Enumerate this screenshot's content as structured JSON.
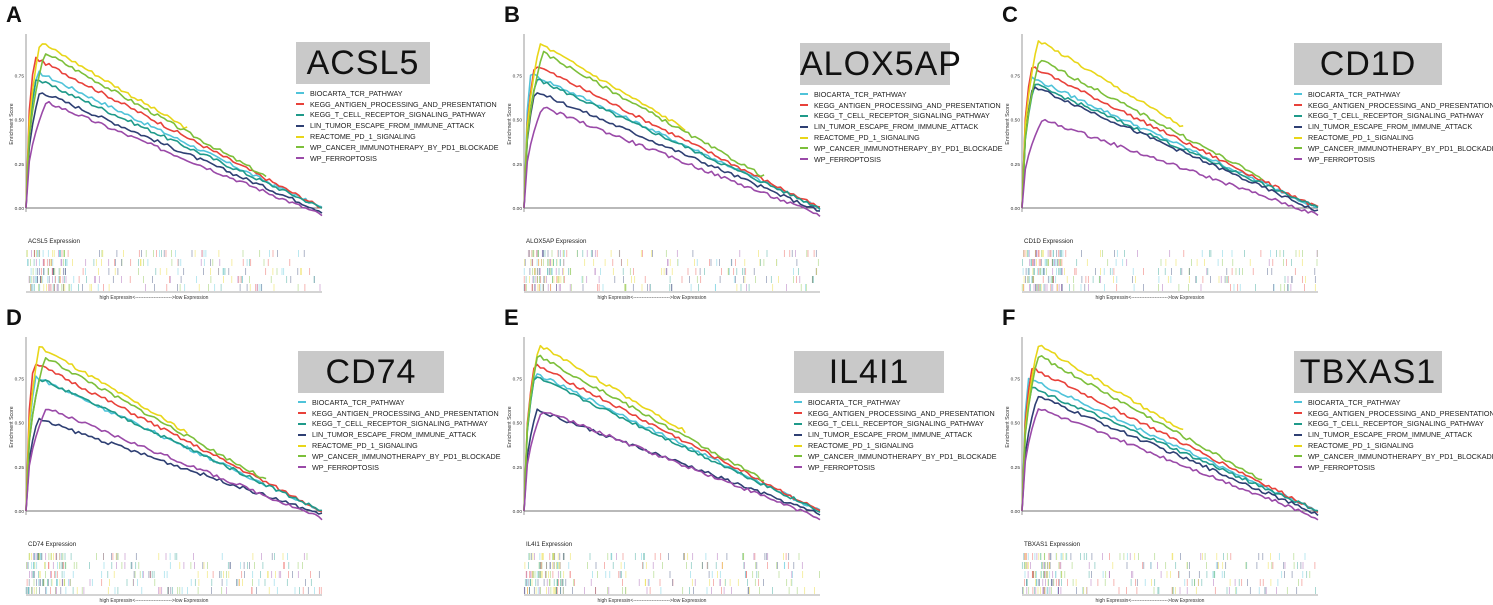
{
  "pathways": [
    {
      "name": "BIOCARTA_TCR_PATHWAY",
      "color": "#4fc3d9"
    },
    {
      "name": "KEGG_ANTIGEN_PROCESSING_AND_PRESENTATION",
      "color": "#e8413a"
    },
    {
      "name": "KEGG_T_CELL_RECEPTOR_SIGNALING_PATHWAY",
      "color": "#1f9a8a"
    },
    {
      "name": "LIN_TUMOR_ESCAPE_FROM_IMMUNE_ATTACK",
      "color": "#2e3f73"
    },
    {
      "name": "REACTOME_PD_1_SIGNALING",
      "color": "#e8d619"
    },
    {
      "name": "WP_CANCER_IMMUNOTHERAPY_BY_PD1_BLOCKADE",
      "color": "#7cbf3a"
    },
    {
      "name": "WP_FERROPTOSIS",
      "color": "#9a4aa8"
    }
  ],
  "common": {
    "ylabel": "Enrichment Score",
    "xlabel": "high Expressin<---------------------->low Expression",
    "yticks": [
      "0.00",
      "0.25",
      "0.50",
      "0.75"
    ]
  },
  "chart_data": [
    {
      "type": "line",
      "letter": "A",
      "gene": "ACSL5",
      "expr_label": "ACSL5 Expression",
      "ylabel": "Enrichment Score",
      "ylim": [
        0,
        0.95
      ],
      "series": [
        {
          "name": "BIOCARTA_TCR_PATHWAY",
          "peak": 0.77
        },
        {
          "name": "KEGG_ANTIGEN_PROCESSING_AND_PRESENTATION",
          "peak": 0.85
        },
        {
          "name": "KEGG_T_CELL_RECEPTOR_SIGNALING_PATHWAY",
          "peak": 0.73
        },
        {
          "name": "LIN_TUMOR_ESCAPE_FROM_IMMUNE_ATTACK",
          "peak": 0.66
        },
        {
          "name": "REACTOME_PD_1_SIGNALING",
          "peak": 0.94
        },
        {
          "name": "WP_CANCER_IMMUNOTHERAPY_BY_PD1_BLOCKADE",
          "peak": 0.88
        },
        {
          "name": "WP_FERROPTOSIS",
          "peak": 0.6
        }
      ]
    },
    {
      "type": "line",
      "letter": "B",
      "gene": "ALOX5AP",
      "expr_label": "ALOX5AP Expression",
      "ylabel": "Enrichment Score",
      "ylim": [
        0,
        0.95
      ],
      "series": [
        {
          "name": "BIOCARTA_TCR_PATHWAY",
          "peak": 0.76
        },
        {
          "name": "KEGG_ANTIGEN_PROCESSING_AND_PRESENTATION",
          "peak": 0.81
        },
        {
          "name": "KEGG_T_CELL_RECEPTOR_SIGNALING_PATHWAY",
          "peak": 0.73
        },
        {
          "name": "LIN_TUMOR_ESCAPE_FROM_IMMUNE_ATTACK",
          "peak": 0.66
        },
        {
          "name": "REACTOME_PD_1_SIGNALING",
          "peak": 0.93
        },
        {
          "name": "WP_CANCER_IMMUNOTHERAPY_BY_PD1_BLOCKADE",
          "peak": 0.88
        },
        {
          "name": "WP_FERROPTOSIS",
          "peak": 0.57
        }
      ]
    },
    {
      "type": "line",
      "letter": "C",
      "gene": "CD1D",
      "expr_label": "CD1D Expression",
      "ylabel": "Enrichment Score",
      "ylim": [
        0,
        0.95
      ],
      "series": [
        {
          "name": "BIOCARTA_TCR_PATHWAY",
          "peak": 0.74
        },
        {
          "name": "KEGG_ANTIGEN_PROCESSING_AND_PRESENTATION",
          "peak": 0.8
        },
        {
          "name": "KEGG_T_CELL_RECEPTOR_SIGNALING_PATHWAY",
          "peak": 0.7
        },
        {
          "name": "LIN_TUMOR_ESCAPE_FROM_IMMUNE_ATTACK",
          "peak": 0.69
        },
        {
          "name": "REACTOME_PD_1_SIGNALING",
          "peak": 0.95
        },
        {
          "name": "WP_CANCER_IMMUNOTHERAPY_BY_PD1_BLOCKADE",
          "peak": 0.84
        },
        {
          "name": "WP_FERROPTOSIS",
          "peak": 0.5
        }
      ]
    },
    {
      "type": "line",
      "letter": "D",
      "gene": "CD74",
      "expr_label": "CD74 Expression",
      "ylabel": "Enrichment Score",
      "ylim": [
        0,
        0.95
      ],
      "series": [
        {
          "name": "BIOCARTA_TCR_PATHWAY",
          "peak": 0.76
        },
        {
          "name": "KEGG_ANTIGEN_PROCESSING_AND_PRESENTATION",
          "peak": 0.84
        },
        {
          "name": "KEGG_T_CELL_RECEPTOR_SIGNALING_PATHWAY",
          "peak": 0.75
        },
        {
          "name": "LIN_TUMOR_ESCAPE_FROM_IMMUNE_ATTACK",
          "peak": 0.52
        },
        {
          "name": "REACTOME_PD_1_SIGNALING",
          "peak": 0.93
        },
        {
          "name": "WP_CANCER_IMMUNOTHERAPY_BY_PD1_BLOCKADE",
          "peak": 0.87
        },
        {
          "name": "WP_FERROPTOSIS",
          "peak": 0.58
        }
      ]
    },
    {
      "type": "line",
      "letter": "E",
      "gene": "IL4I1",
      "expr_label": "IL4I1 Expression",
      "ylabel": "Enrichment Score",
      "ylim": [
        0,
        0.95
      ],
      "series": [
        {
          "name": "BIOCARTA_TCR_PATHWAY",
          "peak": 0.78
        },
        {
          "name": "KEGG_ANTIGEN_PROCESSING_AND_PRESENTATION",
          "peak": 0.83
        },
        {
          "name": "KEGG_T_CELL_RECEPTOR_SIGNALING_PATHWAY",
          "peak": 0.76
        },
        {
          "name": "LIN_TUMOR_ESCAPE_FROM_IMMUNE_ATTACK",
          "peak": 0.57
        },
        {
          "name": "REACTOME_PD_1_SIGNALING",
          "peak": 0.94
        },
        {
          "name": "WP_CANCER_IMMUNOTHERAPY_BY_PD1_BLOCKADE",
          "peak": 0.88
        },
        {
          "name": "WP_FERROPTOSIS",
          "peak": 0.57
        }
      ]
    },
    {
      "type": "line",
      "letter": "F",
      "gene": "TBXAS1",
      "expr_label": "TBXAS1 Expression",
      "ylabel": "Enrichment Score",
      "ylim": [
        0,
        0.95
      ],
      "series": [
        {
          "name": "BIOCARTA_TCR_PATHWAY",
          "peak": 0.75
        },
        {
          "name": "KEGG_ANTIGEN_PROCESSING_AND_PRESENTATION",
          "peak": 0.81
        },
        {
          "name": "KEGG_T_CELL_RECEPTOR_SIGNALING_PATHWAY",
          "peak": 0.7
        },
        {
          "name": "LIN_TUMOR_ESCAPE_FROM_IMMUNE_ATTACK",
          "peak": 0.65
        },
        {
          "name": "REACTOME_PD_1_SIGNALING",
          "peak": 0.94
        },
        {
          "name": "WP_CANCER_IMMUNOTHERAPY_BY_PD1_BLOCKADE",
          "peak": 0.88
        },
        {
          "name": "WP_FERROPTOSIS",
          "peak": 0.58
        }
      ]
    }
  ]
}
